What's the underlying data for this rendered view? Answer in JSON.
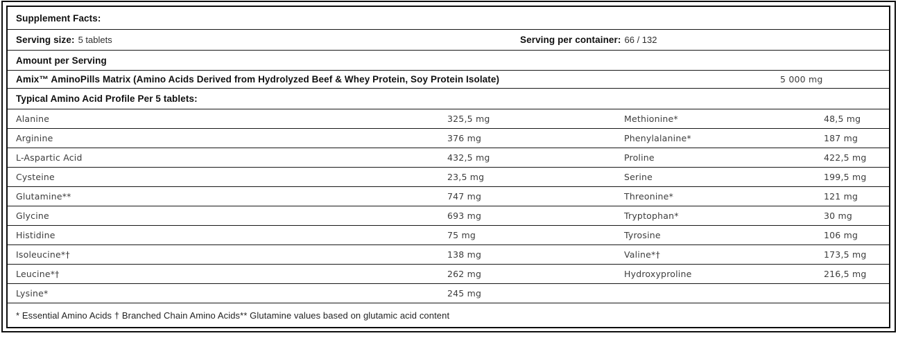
{
  "panel": {
    "title": "Supplement Facts:",
    "serving_size_label": "Serving size:",
    "serving_size_value": "5 tablets",
    "serving_per_container_label": "Serving per container:",
    "serving_per_container_value": "66 / 132",
    "amount_per_serving": "Amount per Serving",
    "matrix_label": "Amix™ AminoPills Matrix (Amino Acids Derived from Hydrolyzed Beef & Whey Protein, Soy Protein Isolate)",
    "matrix_value": "5 000 mg",
    "profile_heading": "Typical Amino Acid Profile Per 5 tablets:",
    "footnote": "* Essential Amino Acids † Branched Chain Amino Acids** Glutamine values based on glutamic acid content"
  },
  "amino_rows": [
    {
      "left_name": "Alanine",
      "left_value": "325,5 mg",
      "right_name": "Methionine*",
      "right_value": "48,5 mg"
    },
    {
      "left_name": "Arginine",
      "left_value": "376 mg",
      "right_name": "Phenylalanine*",
      "right_value": "187 mg"
    },
    {
      "left_name": "L-Aspartic Acid",
      "left_value": "432,5 mg",
      "right_name": "Proline",
      "right_value": "422,5 mg"
    },
    {
      "left_name": "Cysteine",
      "left_value": "23,5 mg",
      "right_name": "Serine",
      "right_value": "199,5 mg"
    },
    {
      "left_name": "Glutamine**",
      "left_value": "747 mg",
      "right_name": "Threonine*",
      "right_value": "121 mg"
    },
    {
      "left_name": "Glycine",
      "left_value": "693 mg",
      "right_name": "Tryptophan*",
      "right_value": "30 mg"
    },
    {
      "left_name": "Histidine",
      "left_value": "75 mg",
      "right_name": "Tyrosine",
      "right_value": "106 mg"
    },
    {
      "left_name": "Isoleucine*†",
      "left_value": "138 mg",
      "right_name": "Valine*†",
      "right_value": "173,5 mg"
    },
    {
      "left_name": "Leucine*†",
      "left_value": "262 mg",
      "right_name": "Hydroxyproline",
      "right_value": "216,5 mg"
    },
    {
      "left_name": "Lysine*",
      "left_value": "245 mg",
      "right_name": "",
      "right_value": ""
    }
  ],
  "colors": {
    "border": "#0d0d0d",
    "heading_text": "#101010",
    "body_text": "#3c3c3c"
  }
}
